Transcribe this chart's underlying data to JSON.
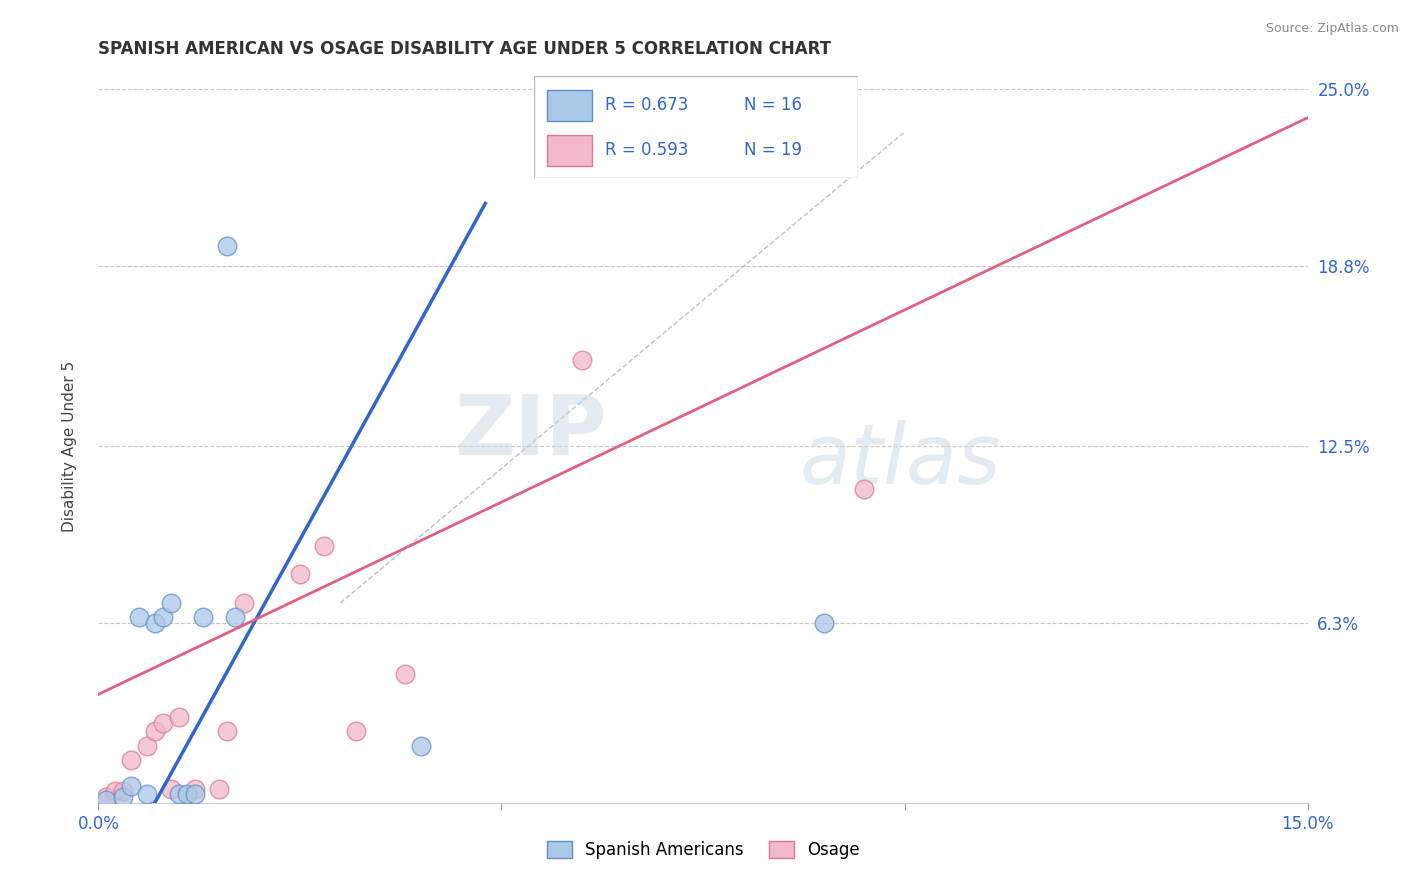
{
  "title": "SPANISH AMERICAN VS OSAGE DISABILITY AGE UNDER 5 CORRELATION CHART",
  "source": "Source: ZipAtlas.com",
  "ylabel": "Disability Age Under 5",
  "xmin": 0.0,
  "xmax": 0.15,
  "ymin": 0.0,
  "ymax": 0.25,
  "xtick_positions": [
    0.0,
    0.05,
    0.1,
    0.15
  ],
  "xticklabels": [
    "0.0%",
    "",
    "",
    "15.0%"
  ],
  "ytick_positions": [
    0.0,
    0.063,
    0.125,
    0.188,
    0.25
  ],
  "yticklabels_right": [
    "",
    "6.3%",
    "12.5%",
    "18.8%",
    "25.0%"
  ],
  "grid_color": "#c8c8c8",
  "background_color": "#ffffff",
  "blue_label": "Spanish Americans",
  "pink_label": "Osage",
  "R_blue": 0.673,
  "N_blue": 16,
  "R_pink": 0.593,
  "N_pink": 19,
  "blue_dot_color": "#aac8e8",
  "pink_dot_color": "#f0b8c8",
  "blue_dot_edge": "#6090c8",
  "pink_dot_edge": "#e07890",
  "blue_line_color": "#3366cc",
  "pink_line_color": "#e06080",
  "diag_line_color": "#99aabb",
  "watermark_zip": "ZIP",
  "watermark_atlas": "atlas",
  "blue_scatter_x": [
    0.001,
    0.003,
    0.004,
    0.005,
    0.006,
    0.007,
    0.008,
    0.009,
    0.01,
    0.011,
    0.012,
    0.013,
    0.016,
    0.017,
    0.04,
    0.09
  ],
  "blue_scatter_y": [
    0.001,
    0.002,
    0.006,
    0.065,
    0.003,
    0.063,
    0.065,
    0.07,
    0.003,
    0.003,
    0.003,
    0.065,
    0.195,
    0.065,
    0.02,
    0.063
  ],
  "pink_scatter_x": [
    0.001,
    0.002,
    0.003,
    0.004,
    0.006,
    0.007,
    0.008,
    0.009,
    0.01,
    0.012,
    0.015,
    0.016,
    0.018,
    0.025,
    0.028,
    0.032,
    0.038,
    0.06,
    0.095
  ],
  "pink_scatter_y": [
    0.002,
    0.004,
    0.004,
    0.015,
    0.02,
    0.025,
    0.028,
    0.005,
    0.03,
    0.005,
    0.005,
    0.025,
    0.07,
    0.08,
    0.09,
    0.025,
    0.045,
    0.155,
    0.11
  ],
  "blue_line_x0": 0.007,
  "blue_line_y0": 0.0,
  "blue_line_x1": 0.048,
  "blue_line_y1": 0.21,
  "pink_line_x0": 0.0,
  "pink_line_y0": 0.038,
  "pink_line_x1": 0.15,
  "pink_line_y1": 0.24
}
